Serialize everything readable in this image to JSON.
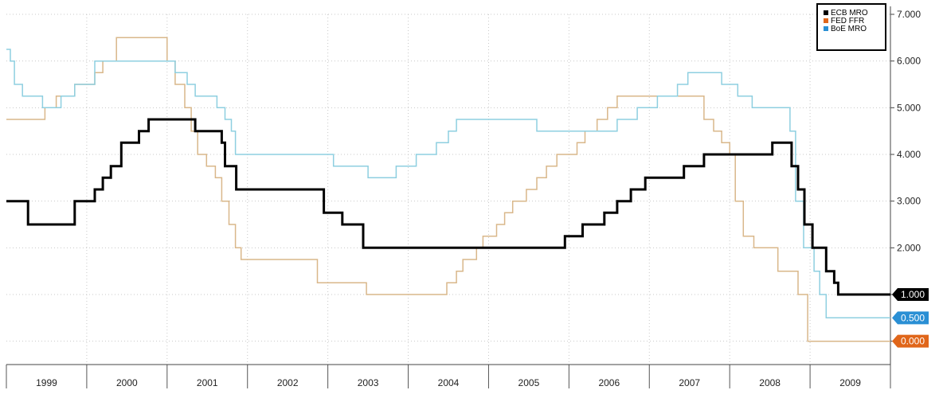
{
  "chart_data": {
    "type": "line",
    "step": true,
    "x_axis": {
      "range": [
        1999.0,
        2010.0
      ],
      "year_labels": [
        "1999",
        "2000",
        "2001",
        "2002",
        "2003",
        "2004",
        "2005",
        "2006",
        "2007",
        "2008",
        "2009"
      ]
    },
    "y_axis": {
      "range": [
        -0.5,
        7.0
      ],
      "side": "right",
      "ticks": [
        0,
        1,
        2,
        3,
        4,
        5,
        6,
        7
      ],
      "tick_labels": [
        "0.000",
        "1.000",
        "2.000",
        "3.000",
        "4.000",
        "5.000",
        "6.000",
        "7.000"
      ]
    },
    "grid": true,
    "legend_position": "top-right",
    "series": [
      {
        "name": "ECB MRO",
        "color": "#000000",
        "last_value_label": "1.000",
        "label_color": "#000000",
        "points": [
          [
            1999.0,
            3.0
          ],
          [
            1999.27,
            2.5
          ],
          [
            1999.85,
            3.0
          ],
          [
            2000.1,
            3.25
          ],
          [
            2000.2,
            3.5
          ],
          [
            2000.3,
            3.75
          ],
          [
            2000.43,
            4.25
          ],
          [
            2000.65,
            4.5
          ],
          [
            2000.77,
            4.75
          ],
          [
            2001.35,
            4.5
          ],
          [
            2001.68,
            4.25
          ],
          [
            2001.72,
            3.75
          ],
          [
            2001.86,
            3.25
          ],
          [
            2002.95,
            2.75
          ],
          [
            2003.18,
            2.5
          ],
          [
            2003.44,
            2.0
          ],
          [
            2005.95,
            2.25
          ],
          [
            2006.17,
            2.5
          ],
          [
            2006.44,
            2.75
          ],
          [
            2006.6,
            3.0
          ],
          [
            2006.77,
            3.25
          ],
          [
            2006.95,
            3.5
          ],
          [
            2007.43,
            3.75
          ],
          [
            2007.68,
            4.0
          ],
          [
            2008.53,
            4.25
          ],
          [
            2008.77,
            3.75
          ],
          [
            2008.85,
            3.25
          ],
          [
            2008.93,
            2.5
          ],
          [
            2009.03,
            2.0
          ],
          [
            2009.2,
            1.5
          ],
          [
            2009.3,
            1.25
          ],
          [
            2009.35,
            1.0
          ],
          [
            2010.0,
            1.0
          ]
        ]
      },
      {
        "name": "FED FFR",
        "color": "#d9b78a",
        "last_value_label": "0.000",
        "label_color": "#e0661a",
        "points": [
          [
            1999.0,
            4.75
          ],
          [
            1999.48,
            5.0
          ],
          [
            1999.62,
            5.25
          ],
          [
            1999.85,
            5.5
          ],
          [
            2000.1,
            5.75
          ],
          [
            2000.2,
            6.0
          ],
          [
            2000.37,
            6.5
          ],
          [
            2001.0,
            6.0
          ],
          [
            2001.1,
            5.5
          ],
          [
            2001.22,
            5.0
          ],
          [
            2001.3,
            4.5
          ],
          [
            2001.38,
            4.0
          ],
          [
            2001.49,
            3.75
          ],
          [
            2001.6,
            3.5
          ],
          [
            2001.68,
            3.0
          ],
          [
            2001.77,
            2.5
          ],
          [
            2001.85,
            2.0
          ],
          [
            2001.92,
            1.75
          ],
          [
            2002.87,
            1.25
          ],
          [
            2003.48,
            1.0
          ],
          [
            2004.48,
            1.25
          ],
          [
            2004.6,
            1.5
          ],
          [
            2004.68,
            1.75
          ],
          [
            2004.85,
            2.0
          ],
          [
            2004.93,
            2.25
          ],
          [
            2005.1,
            2.5
          ],
          [
            2005.2,
            2.75
          ],
          [
            2005.3,
            3.0
          ],
          [
            2005.47,
            3.25
          ],
          [
            2005.6,
            3.5
          ],
          [
            2005.72,
            3.75
          ],
          [
            2005.85,
            4.0
          ],
          [
            2006.1,
            4.25
          ],
          [
            2006.2,
            4.5
          ],
          [
            2006.35,
            4.75
          ],
          [
            2006.48,
            5.0
          ],
          [
            2006.6,
            5.25
          ],
          [
            2007.68,
            4.75
          ],
          [
            2007.8,
            4.5
          ],
          [
            2007.9,
            4.25
          ],
          [
            2008.0,
            4.0
          ],
          [
            2008.07,
            3.0
          ],
          [
            2008.17,
            2.25
          ],
          [
            2008.3,
            2.0
          ],
          [
            2008.6,
            1.5
          ],
          [
            2008.85,
            1.0
          ],
          [
            2008.97,
            0.0
          ],
          [
            2010.0,
            0.0
          ]
        ]
      },
      {
        "name": "BoE MRO",
        "color": "#8ecfe0",
        "last_value_label": "0.500",
        "label_color": "#2a8fd4",
        "points": [
          [
            1999.0,
            6.25
          ],
          [
            1999.05,
            6.0
          ],
          [
            1999.1,
            5.5
          ],
          [
            1999.2,
            5.25
          ],
          [
            1999.45,
            5.0
          ],
          [
            1999.68,
            5.25
          ],
          [
            1999.85,
            5.5
          ],
          [
            2000.1,
            6.0
          ],
          [
            2001.1,
            5.75
          ],
          [
            2001.25,
            5.5
          ],
          [
            2001.35,
            5.25
          ],
          [
            2001.62,
            5.0
          ],
          [
            2001.72,
            4.75
          ],
          [
            2001.8,
            4.5
          ],
          [
            2001.85,
            4.0
          ],
          [
            2003.07,
            3.75
          ],
          [
            2003.5,
            3.5
          ],
          [
            2003.85,
            3.75
          ],
          [
            2004.1,
            4.0
          ],
          [
            2004.35,
            4.25
          ],
          [
            2004.5,
            4.5
          ],
          [
            2004.6,
            4.75
          ],
          [
            2005.6,
            4.5
          ],
          [
            2006.6,
            4.75
          ],
          [
            2006.85,
            5.0
          ],
          [
            2007.1,
            5.25
          ],
          [
            2007.35,
            5.5
          ],
          [
            2007.48,
            5.75
          ],
          [
            2007.9,
            5.5
          ],
          [
            2008.1,
            5.25
          ],
          [
            2008.28,
            5.0
          ],
          [
            2008.75,
            4.5
          ],
          [
            2008.82,
            3.0
          ],
          [
            2008.92,
            2.0
          ],
          [
            2009.05,
            1.5
          ],
          [
            2009.12,
            1.0
          ],
          [
            2009.2,
            0.5
          ],
          [
            2010.0,
            0.5
          ]
        ]
      }
    ]
  }
}
